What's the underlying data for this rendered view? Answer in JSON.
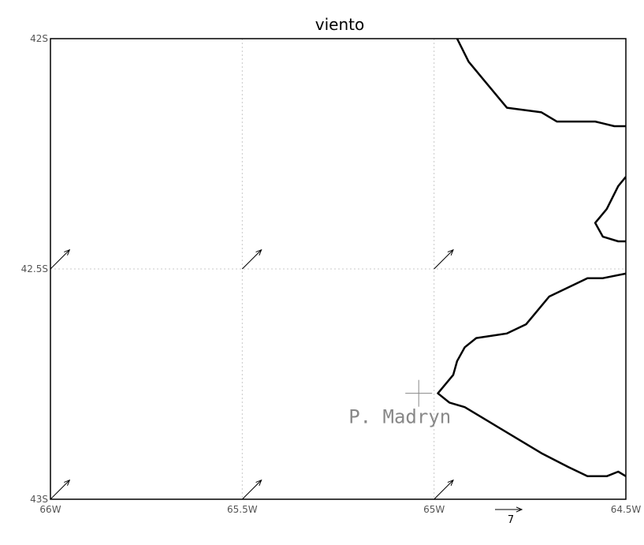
{
  "title": "viento",
  "axes": {
    "lon_ticks": [
      {
        "value": -66.0,
        "label": "66W"
      },
      {
        "value": -65.5,
        "label": "65.5W"
      },
      {
        "value": -65.0,
        "label": "65W"
      },
      {
        "value": -64.5,
        "label": "64.5W"
      }
    ],
    "lat_ticks": [
      {
        "value": -42.0,
        "label": "42S"
      },
      {
        "value": -42.5,
        "label": "42.5S"
      },
      {
        "value": -43.0,
        "label": "43S"
      }
    ],
    "lon_range": [
      -66.0,
      -64.5
    ],
    "lat_range": [
      -43.0,
      -42.0
    ],
    "grid": true
  },
  "place": {
    "label": "P. Madryn",
    "lon": -65.04,
    "lat": -42.77
  },
  "wind_vectors": [
    {
      "lon": -66.0,
      "lat": -42.5,
      "u": 5,
      "v": 5
    },
    {
      "lon": -65.5,
      "lat": -42.5,
      "u": 5,
      "v": 5
    },
    {
      "lon": -65.0,
      "lat": -42.5,
      "u": 5,
      "v": 5
    },
    {
      "lon": -66.0,
      "lat": -43.0,
      "u": 5,
      "v": 5
    },
    {
      "lon": -65.5,
      "lat": -43.0,
      "u": 5,
      "v": 5
    },
    {
      "lon": -65.0,
      "lat": -43.0,
      "u": 5,
      "v": 5
    }
  ],
  "reference_vector": {
    "label": "7",
    "magnitude": 7
  },
  "coastlines": [
    [
      [
        -64.94,
        -42.0
      ],
      [
        -64.91,
        -42.05
      ],
      [
        -64.87,
        -42.09
      ],
      [
        -64.81,
        -42.15
      ],
      [
        -64.72,
        -42.16
      ],
      [
        -64.68,
        -42.18
      ],
      [
        -64.58,
        -42.18
      ],
      [
        -64.53,
        -42.19
      ],
      [
        -64.37,
        -42.19
      ],
      [
        -64.32,
        -42.2
      ],
      [
        -64.3,
        -42.21
      ],
      [
        -64.28,
        -42.23
      ]
    ],
    [
      [
        -64.5,
        -42.3
      ],
      [
        -64.52,
        -42.32
      ],
      [
        -64.55,
        -42.37
      ],
      [
        -64.58,
        -42.4
      ],
      [
        -64.56,
        -42.43
      ],
      [
        -64.52,
        -42.44
      ],
      [
        -64.5,
        -42.44
      ]
    ],
    [
      [
        -64.5,
        -42.51
      ],
      [
        -64.56,
        -42.52
      ],
      [
        -64.6,
        -42.52
      ],
      [
        -64.65,
        -42.54
      ],
      [
        -64.7,
        -42.56
      ],
      [
        -64.73,
        -42.59
      ],
      [
        -64.76,
        -42.62
      ],
      [
        -64.81,
        -42.64
      ],
      [
        -64.89,
        -42.65
      ],
      [
        -64.92,
        -42.67
      ],
      [
        -64.94,
        -42.7
      ],
      [
        -64.95,
        -42.73
      ],
      [
        -64.98,
        -42.76
      ],
      [
        -64.99,
        -42.77
      ],
      [
        -64.96,
        -42.79
      ],
      [
        -64.92,
        -42.8
      ],
      [
        -64.86,
        -42.83
      ],
      [
        -64.78,
        -42.87
      ],
      [
        -64.72,
        -42.9
      ],
      [
        -64.65,
        -42.93
      ],
      [
        -64.6,
        -42.95
      ],
      [
        -64.55,
        -42.95
      ],
      [
        -64.52,
        -42.94
      ],
      [
        -64.5,
        -42.95
      ]
    ]
  ],
  "colors": {
    "coast": "#000000",
    "grid": "#c8c8c8",
    "frame": "#000000",
    "place": "#888888",
    "vector": "#000000"
  }
}
